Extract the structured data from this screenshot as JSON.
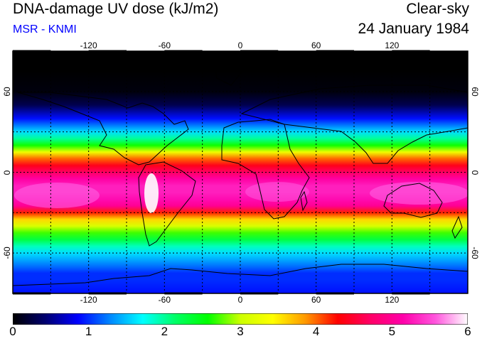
{
  "header": {
    "title": "DNA-damage UV dose (kJ/m2)",
    "subtitle": "MSR - KNMI",
    "condition": "Clear-sky",
    "date": "24 January 1984"
  },
  "colors": {
    "subtitle": "#0000ff",
    "ramp": [
      "#000000",
      "#000070",
      "#0000ff",
      "#0088ff",
      "#00ffff",
      "#00ff66",
      "#00ff00",
      "#ccff00",
      "#ffff00",
      "#ff9900",
      "#ff0000",
      "#ff0066",
      "#ff00aa",
      "#ff55dd",
      "#ffffff"
    ]
  },
  "map": {
    "projection": "equirectangular",
    "lon_range": [
      -180,
      180
    ],
    "lat_range": [
      -90,
      90
    ],
    "graticule_step_deg": 30,
    "x_ticks": [
      "-120",
      "-60",
      "0",
      "60",
      "120"
    ],
    "y_ticks": [
      "60",
      "0",
      "-60"
    ]
  },
  "colorbar": {
    "ticks": [
      "0",
      "1",
      "2",
      "3",
      "4",
      "5",
      "6"
    ],
    "min": 0,
    "max": 6,
    "unit": "kJ/m2"
  },
  "chart_data": {
    "type": "heatmap",
    "title": "DNA-damage UV dose (kJ/m2)",
    "description_fields": [
      "Clear-sky",
      "24 January 1984"
    ],
    "zonal_profile": {
      "lat": [
        90,
        75,
        60,
        50,
        40,
        30,
        25,
        20,
        15,
        10,
        5,
        0,
        -5,
        -10,
        -15,
        -20,
        -25,
        -30,
        -35,
        -40,
        -45,
        -50,
        -55,
        -60,
        -65,
        -70,
        -75,
        -80,
        -90
      ],
      "dose": [
        0.0,
        0.0,
        0.05,
        0.3,
        0.9,
        1.6,
        2.0,
        2.6,
        3.3,
        4.0,
        4.4,
        4.7,
        5.1,
        5.3,
        5.3,
        5.2,
        5.0,
        4.2,
        3.6,
        3.1,
        2.7,
        2.3,
        1.9,
        1.6,
        1.4,
        1.2,
        1.0,
        1.0,
        0.9
      ]
    },
    "xlim": [
      -180,
      180
    ],
    "ylim": [
      -90,
      90
    ],
    "colorbar_range": [
      0,
      6
    ]
  }
}
